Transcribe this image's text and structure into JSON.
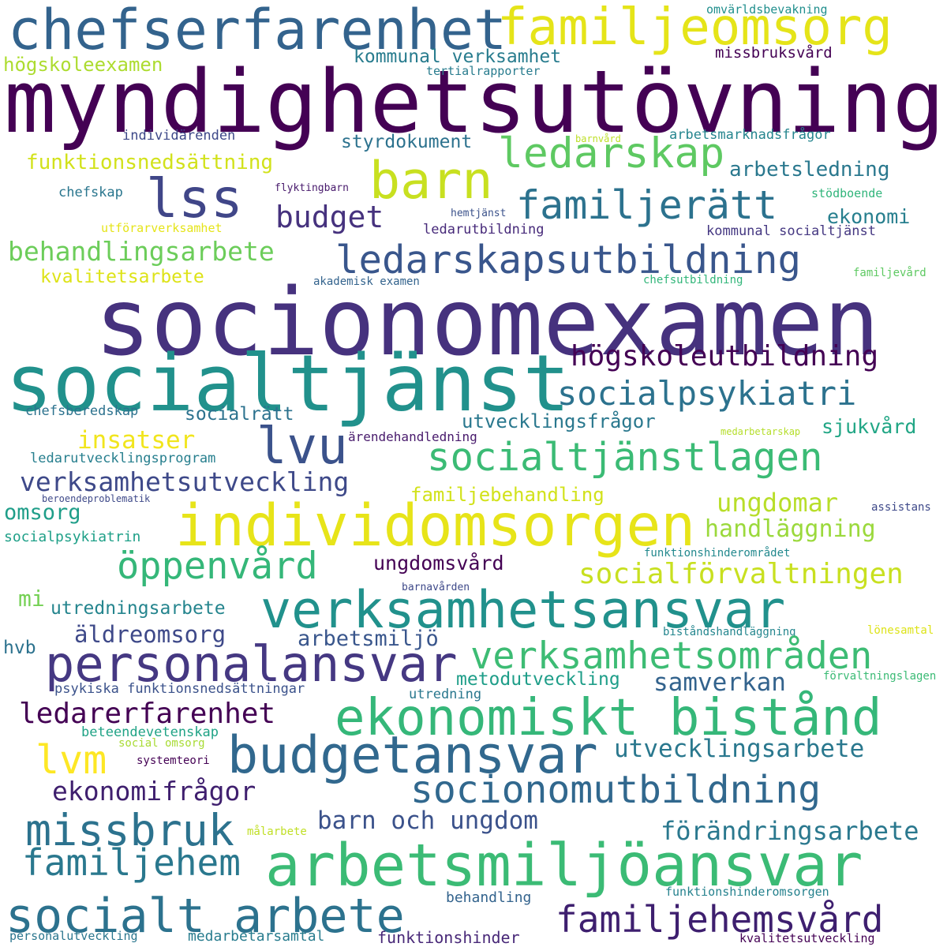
{
  "words": [
    {
      "text": "chefserfarenhet",
      "color": "#33638d"
    },
    {
      "text": "familjeomsorg",
      "color": "#e5e419"
    },
    {
      "text": "myndighetsutövning",
      "color": "#440154"
    },
    {
      "text": "omvärldsbevakning",
      "color": "#218f8d"
    },
    {
      "text": "högskoleexamen",
      "color": "#addc30"
    },
    {
      "text": "kommunal verksamhet",
      "color": "#287c8e"
    },
    {
      "text": "missbruksvård",
      "color": "#440154"
    },
    {
      "text": "tertialrapporter",
      "color": "#287c8e"
    },
    {
      "text": "individärenden",
      "color": "#3e4989"
    },
    {
      "text": "barnvård",
      "color": "#bddf26"
    },
    {
      "text": "arbetsmarknadsfrågor",
      "color": "#25858e"
    },
    {
      "text": "styrdokument",
      "color": "#2c728e"
    },
    {
      "text": "ledarskap",
      "color": "#5ec962"
    },
    {
      "text": "funktionsnedsättning",
      "color": "#d2e21b"
    },
    {
      "text": "barn",
      "color": "#c8e020"
    },
    {
      "text": "arbetsledning",
      "color": "#2a788e"
    },
    {
      "text": "lss",
      "color": "#404688"
    },
    {
      "text": "chefskap",
      "color": "#2a768e"
    },
    {
      "text": "flyktingbarn",
      "color": "#481a6c"
    },
    {
      "text": "familjerätt",
      "color": "#2c728e"
    },
    {
      "text": "stödboende",
      "color": "#31b57b"
    },
    {
      "text": "budget",
      "color": "#46327e"
    },
    {
      "text": "hemtjänst",
      "color": "#3b528b"
    },
    {
      "text": "ekonomi",
      "color": "#277f8e"
    },
    {
      "text": "utförarverksamhet",
      "color": "#e5e419"
    },
    {
      "text": "ledarutbildning",
      "color": "#472a7a"
    },
    {
      "text": "kommunal socialtjänst",
      "color": "#453882"
    },
    {
      "text": "behandlingsarbete",
      "color": "#6ccd5a"
    },
    {
      "text": "ledarskapsutbildning",
      "color": "#39568c"
    },
    {
      "text": "kvalitetsarbete",
      "color": "#dde318"
    },
    {
      "text": "akademisk examen",
      "color": "#33638d"
    },
    {
      "text": "chefsutbildning",
      "color": "#32b67a"
    },
    {
      "text": "familjevård",
      "color": "#5ec962"
    },
    {
      "text": "socionomexamen",
      "color": "#46327e"
    },
    {
      "text": "socialtjänst",
      "color": "#21918c"
    },
    {
      "text": "högskoleutbildning",
      "color": "#440154"
    },
    {
      "text": "socialpsykiatri",
      "color": "#2c728e"
    },
    {
      "text": "chefsberedskap",
      "color": "#2c728e"
    },
    {
      "text": "socialrätt",
      "color": "#2c728e"
    },
    {
      "text": "utvecklingsfrågor",
      "color": "#2a788e"
    },
    {
      "text": "sjukvård",
      "color": "#21a685"
    },
    {
      "text": "medarbetarskap",
      "color": "#b5de2b"
    },
    {
      "text": "insatser",
      "color": "#f1e51d"
    },
    {
      "text": "lvu",
      "color": "#3b528b"
    },
    {
      "text": "ärendehandledning",
      "color": "#481a6c"
    },
    {
      "text": "socialtjänstlagen",
      "color": "#3bbb75"
    },
    {
      "text": "ledarutvecklingsprogram",
      "color": "#277f8e"
    },
    {
      "text": "verksamhetsutveckling",
      "color": "#3e4989"
    },
    {
      "text": "familjebehandling",
      "color": "#d2e21b"
    },
    {
      "text": "beroendeproblematik",
      "color": "#3e4989"
    },
    {
      "text": "omsorg",
      "color": "#1f9e89"
    },
    {
      "text": "individomsorgen",
      "color": "#e7e419"
    },
    {
      "text": "ungdomar",
      "color": "#b8de29"
    },
    {
      "text": "assistans",
      "color": "#3e4989"
    },
    {
      "text": "socialpsykiatrin",
      "color": "#1fa088"
    },
    {
      "text": "handläggning",
      "color": "#9bd93c"
    },
    {
      "text": "funktionshinderområdet",
      "color": "#23898e"
    },
    {
      "text": "öppenvård",
      "color": "#35b779"
    },
    {
      "text": "ungdomsvård",
      "color": "#440154"
    },
    {
      "text": "socialförvaltningen",
      "color": "#c8e020"
    },
    {
      "text": "barnavården",
      "color": "#3e4989"
    },
    {
      "text": "mi",
      "color": "#75d054"
    },
    {
      "text": "utredningsarbete",
      "color": "#25858e"
    },
    {
      "text": "verksamhetsansvar",
      "color": "#21918c"
    },
    {
      "text": "äldreomsorg",
      "color": "#3e4989"
    },
    {
      "text": "arbetsmiljö",
      "color": "#39568c"
    },
    {
      "text": "biståndshandläggning",
      "color": "#24868e"
    },
    {
      "text": "lönesamtal",
      "color": "#dde318"
    },
    {
      "text": "hvb",
      "color": "#2c728e"
    },
    {
      "text": "personalansvar",
      "color": "#453882"
    },
    {
      "text": "verksamhetsområden",
      "color": "#3dbc74"
    },
    {
      "text": "metodutveckling",
      "color": "#1f9e89"
    },
    {
      "text": "samverkan",
      "color": "#33638d"
    },
    {
      "text": "förvaltningslagen",
      "color": "#3bbb75"
    },
    {
      "text": "psykiska funktionsnedsättningar",
      "color": "#3b528b"
    },
    {
      "text": "utredning",
      "color": "#2a788e"
    },
    {
      "text": "ledarerfarenhet",
      "color": "#440154"
    },
    {
      "text": "ekonomiskt bistånd",
      "color": "#35b779"
    },
    {
      "text": "beteendevetenskap",
      "color": "#20a386"
    },
    {
      "text": "social omsorg",
      "color": "#a8db34"
    },
    {
      "text": "lvm",
      "color": "#fde725"
    },
    {
      "text": "systemteori",
      "color": "#440154"
    },
    {
      "text": "budgetansvar",
      "color": "#31688e"
    },
    {
      "text": "utvecklingsarbete",
      "color": "#2a788e"
    },
    {
      "text": "ekonomifrågor",
      "color": "#3f1f6e"
    },
    {
      "text": "socionomutbildning",
      "color": "#31688e"
    },
    {
      "text": "missbruk",
      "color": "#2c728e"
    },
    {
      "text": "barn och ungdom",
      "color": "#3b528b"
    },
    {
      "text": "målarbete",
      "color": "#c0df25"
    },
    {
      "text": "förändringsarbete",
      "color": "#2a788e"
    },
    {
      "text": "familjehem",
      "color": "#2a788e"
    },
    {
      "text": "arbetsmiljöansvar",
      "color": "#3bbb75"
    },
    {
      "text": "behandling",
      "color": "#33638d"
    },
    {
      "text": "funktionshinderomsorgen",
      "color": "#26828e"
    },
    {
      "text": "socialt arbete",
      "color": "#2c728e"
    },
    {
      "text": "familjehemsvård",
      "color": "#3e1f6f"
    },
    {
      "text": "personalutveckling",
      "color": "#2a768e"
    },
    {
      "text": "medarbetarsamtal",
      "color": "#287c8e"
    },
    {
      "text": "funktionshinder",
      "color": "#482878"
    },
    {
      "text": "kvalitetsutveckling",
      "color": "#440154"
    }
  ]
}
